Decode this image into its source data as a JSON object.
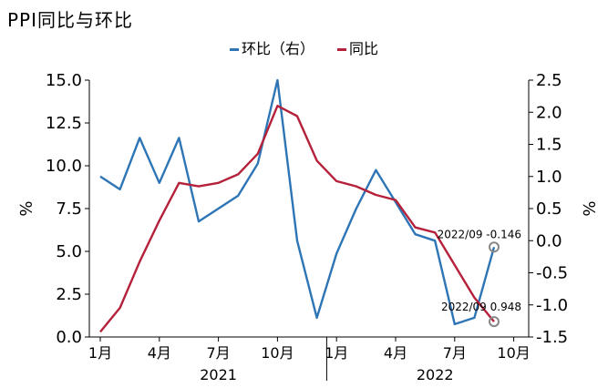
{
  "title": "PPI同比与环比",
  "legend": [
    {
      "label": "环比（右）",
      "color": "#2E75B6"
    },
    {
      "label": "同比",
      "color": "#B5213A"
    }
  ],
  "chart_data": {
    "type": "line",
    "title": "PPI同比与环比",
    "x": [
      "2021-01",
      "2021-02",
      "2021-03",
      "2021-04",
      "2021-05",
      "2021-06",
      "2021-07",
      "2021-08",
      "2021-09",
      "2021-10",
      "2021-11",
      "2021-12",
      "2022-01",
      "2022-02",
      "2022-03",
      "2022-04",
      "2022-05",
      "2022-06",
      "2022-07",
      "2022-08",
      "2022-09",
      "2022-10"
    ],
    "x_tick_labels": [
      "1月",
      "4月",
      "7月",
      "10月",
      "1月",
      "4月",
      "7月",
      "10月"
    ],
    "x_year_labels": [
      "2021",
      "2022"
    ],
    "ylabel_left": "%",
    "ylabel_right": "%",
    "ylim_left": [
      0.0,
      15.0
    ],
    "yticks_left": [
      "0.0",
      "2.5",
      "5.0",
      "7.5",
      "10.0",
      "12.5",
      "15.0"
    ],
    "ylim_right": [
      -1.5,
      2.5
    ],
    "yticks_right": [
      "-1.5",
      "-1.0",
      "-0.5",
      "0.0",
      "0.5",
      "1.0",
      "1.5",
      "2.0",
      "2.5"
    ],
    "series": [
      {
        "name": "环比（右）",
        "axis": "right",
        "color": "#2E75B6",
        "x": [
          "2021-01",
          "2021-02",
          "2021-03",
          "2021-04",
          "2021-05",
          "2021-06",
          "2021-07",
          "2021-08",
          "2021-09",
          "2021-10",
          "2021-11",
          "2021-12",
          "2022-01",
          "2022-02",
          "2022-03",
          "2022-04",
          "2022-05",
          "2022-06",
          "2022-07",
          "2022-08",
          "2022-09"
        ],
        "values": [
          1.0,
          0.8,
          1.6,
          0.9,
          1.6,
          0.3,
          0.5,
          0.7,
          1.2,
          2.5,
          0.0,
          -1.2,
          -0.2,
          0.5,
          1.1,
          0.6,
          0.1,
          0.0,
          -1.3,
          -1.2,
          -0.1
        ]
      },
      {
        "name": "同比",
        "axis": "left",
        "color": "#B5213A",
        "x": [
          "2021-01",
          "2021-02",
          "2021-03",
          "2021-04",
          "2021-05",
          "2021-06",
          "2021-07",
          "2021-08",
          "2021-09",
          "2021-10",
          "2021-11",
          "2021-12",
          "2022-01",
          "2022-02",
          "2022-03",
          "2022-04",
          "2022-05",
          "2022-06",
          "2022-07",
          "2022-08",
          "2022-09"
        ],
        "values": [
          0.3,
          1.7,
          4.4,
          6.8,
          9.0,
          8.8,
          9.0,
          9.5,
          10.7,
          13.5,
          12.9,
          10.3,
          9.1,
          8.8,
          8.3,
          8.0,
          6.4,
          6.1,
          4.2,
          2.3,
          0.9
        ]
      }
    ],
    "annotations": [
      {
        "series": "环比（右）",
        "x": "2022-09",
        "text": "2022/09  -0.146"
      },
      {
        "series": "同比",
        "x": "2022-09",
        "text": "2022/09  0.948"
      }
    ]
  }
}
